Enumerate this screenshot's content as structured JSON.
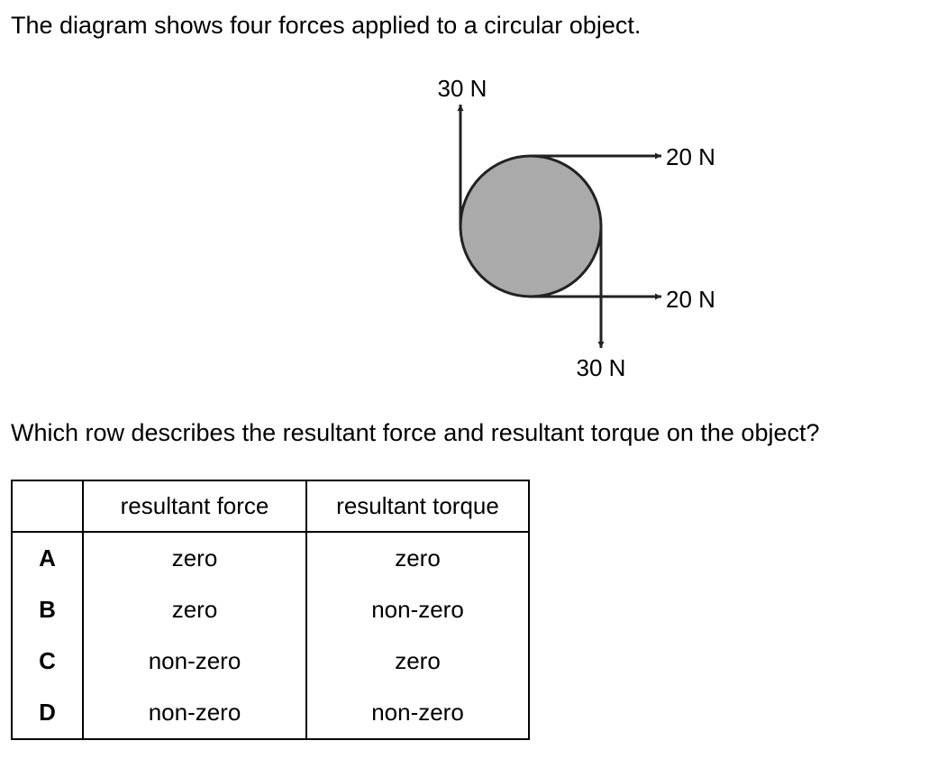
{
  "question": {
    "intro": "The diagram shows four forces applied to a circular object.",
    "prompt": "Which row describes the resultant force and resultant torque on the object?"
  },
  "diagram": {
    "forces": [
      {
        "label": "30 N",
        "direction": "up"
      },
      {
        "label": "20 N",
        "direction": "right"
      },
      {
        "label": "20 N",
        "direction": "right"
      },
      {
        "label": "30 N",
        "direction": "down"
      }
    ],
    "colors": {
      "object_fill": "#aaaaaa",
      "stroke": "#222222"
    }
  },
  "table": {
    "headers": [
      "",
      "resultant force",
      "resultant torque"
    ],
    "rows": [
      {
        "key": "A",
        "force": "zero",
        "torque": "zero"
      },
      {
        "key": "B",
        "force": "zero",
        "torque": "non-zero"
      },
      {
        "key": "C",
        "force": "non-zero",
        "torque": "zero"
      },
      {
        "key": "D",
        "force": "non-zero",
        "torque": "non-zero"
      }
    ]
  }
}
